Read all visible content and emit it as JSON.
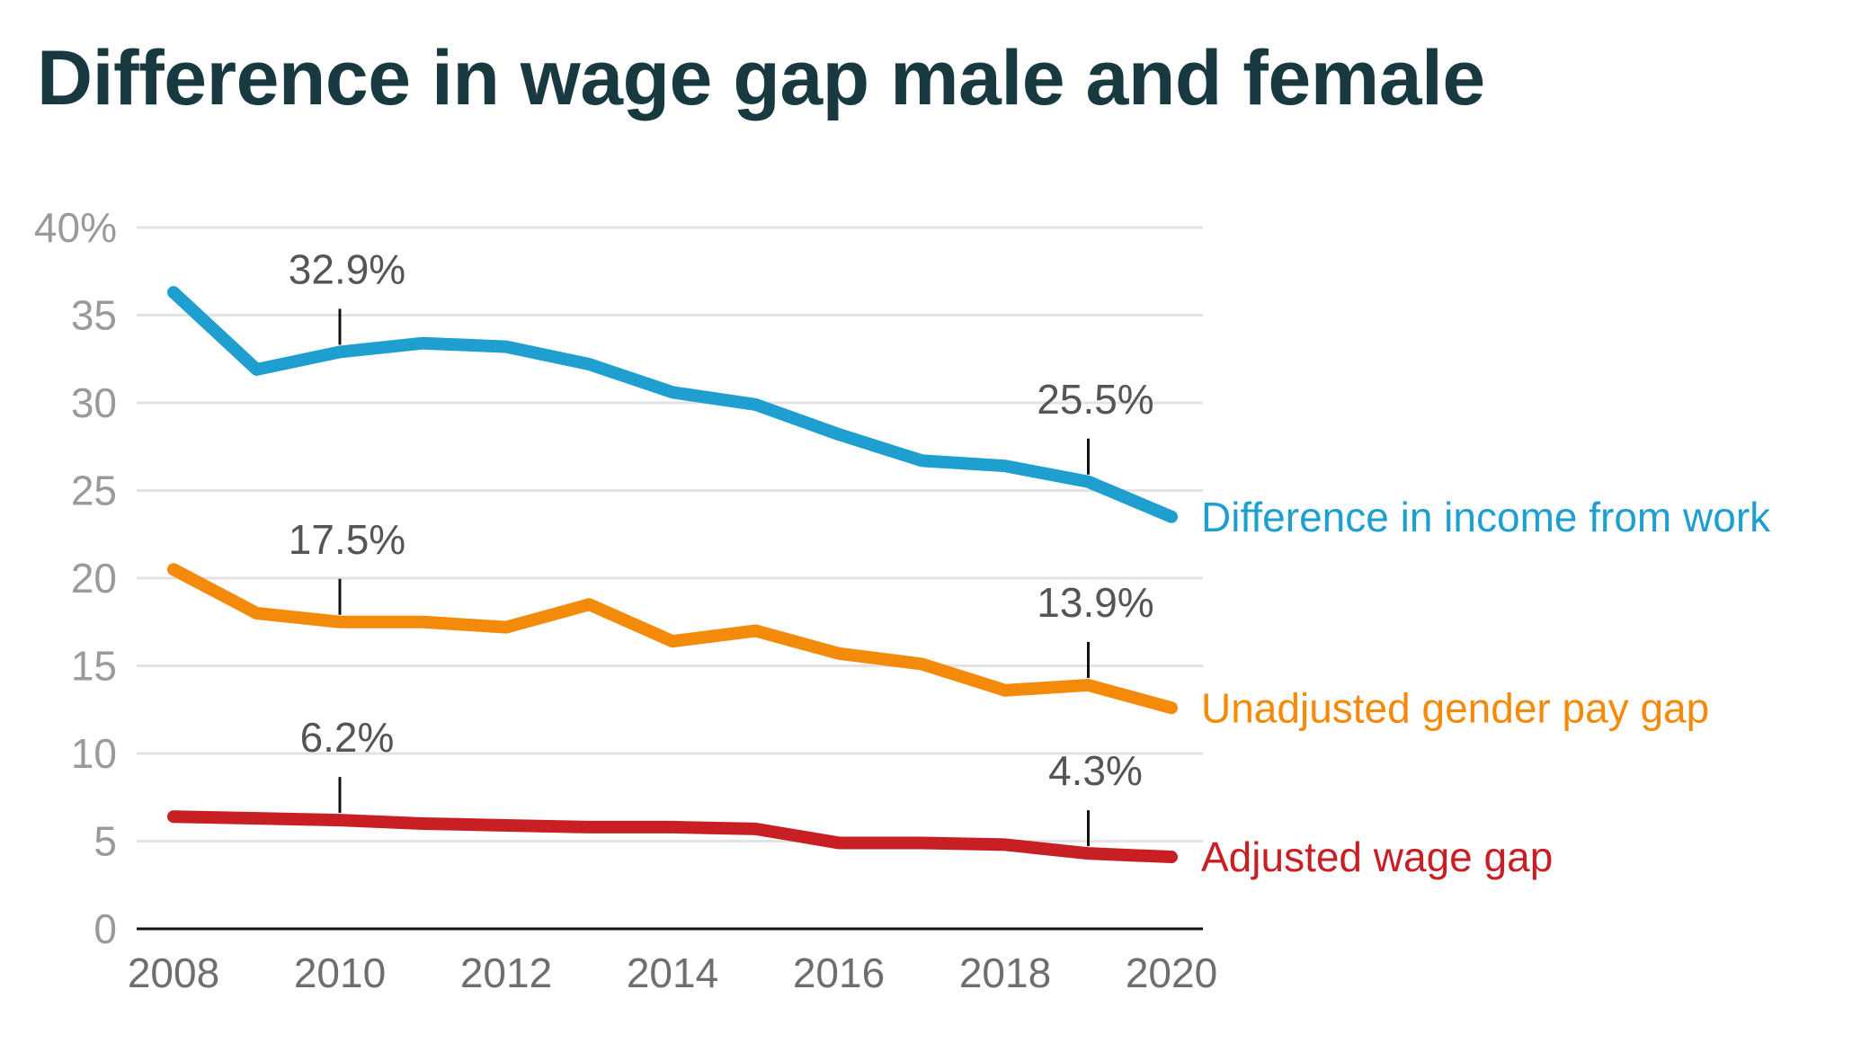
{
  "title": "Difference in wage gap male and female",
  "chart_data": {
    "type": "line",
    "title": "Difference in wage gap male and female",
    "xlabel": "",
    "ylabel": "",
    "x": [
      2008,
      2009,
      2010,
      2011,
      2012,
      2013,
      2014,
      2015,
      2016,
      2017,
      2018,
      2019,
      2020
    ],
    "xlim": [
      2008,
      2020
    ],
    "ylim": [
      0,
      40
    ],
    "grid": true,
    "legend": "direct labels at right end of lines",
    "x_ticks": [
      "2008",
      "2010",
      "2012",
      "2014",
      "2016",
      "2018",
      "2020"
    ],
    "y_ticks": [
      {
        "value": 40,
        "label": "40%"
      },
      {
        "value": 35,
        "label": "35"
      },
      {
        "value": 30,
        "label": "30"
      },
      {
        "value": 25,
        "label": "25"
      },
      {
        "value": 20,
        "label": "20"
      },
      {
        "value": 15,
        "label": "15"
      },
      {
        "value": 10,
        "label": "10"
      },
      {
        "value": 5,
        "label": "5"
      },
      {
        "value": 0,
        "label": "0"
      }
    ],
    "series": [
      {
        "name": "Difference in income from work",
        "color": "#1f9fcf",
        "values": [
          36.3,
          31.9,
          32.9,
          33.4,
          33.2,
          32.2,
          30.6,
          29.9,
          28.2,
          26.7,
          26.4,
          25.5,
          23.5
        ]
      },
      {
        "name": "Unadjusted gender pay gap",
        "color": "#f48a0a",
        "values": [
          20.5,
          18.0,
          17.5,
          17.5,
          17.2,
          18.5,
          16.4,
          17.0,
          15.7,
          15.1,
          13.6,
          13.9,
          12.6
        ]
      },
      {
        "name": "Adjusted wage gap",
        "color": "#c81f24",
        "values": [
          6.4,
          6.3,
          6.2,
          6.0,
          5.9,
          5.8,
          5.8,
          5.7,
          4.9,
          4.9,
          4.8,
          4.3,
          4.1
        ]
      }
    ],
    "annotations": [
      {
        "x": 2010,
        "y": 32.9,
        "text": "32.9%"
      },
      {
        "x": 2019,
        "y": 25.5,
        "text": "25.5%"
      },
      {
        "x": 2010,
        "y": 17.5,
        "text": "17.5%"
      },
      {
        "x": 2019,
        "y": 13.9,
        "text": "13.9%"
      },
      {
        "x": 2010,
        "y": 6.2,
        "text": "6.2%"
      },
      {
        "x": 2019,
        "y": 4.3,
        "text": "4.3%"
      }
    ]
  }
}
